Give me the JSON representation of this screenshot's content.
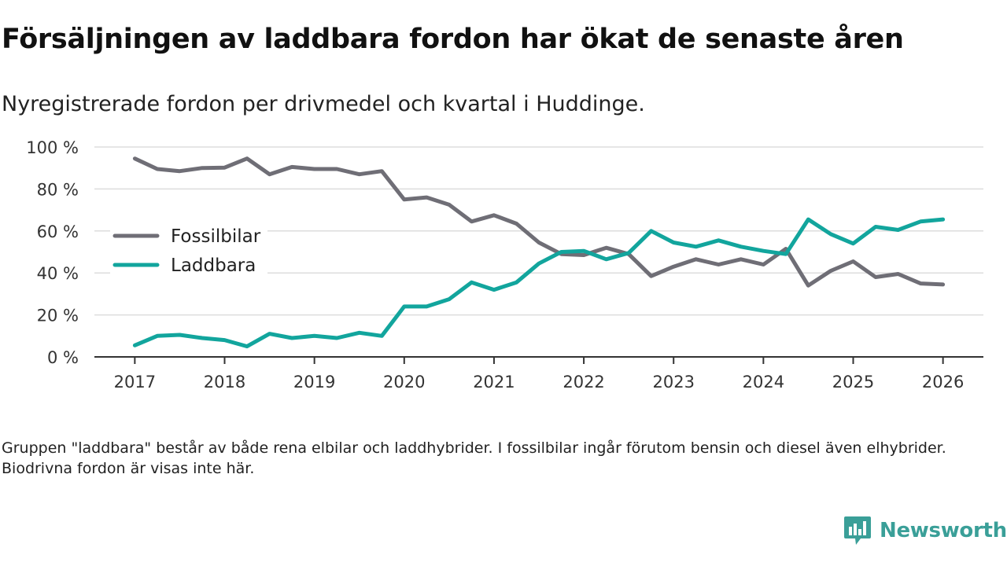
{
  "title": "Försäljningen av laddbara fordon har ökat de senaste åren",
  "subtitle": "Nyregistrerade fordon per drivmedel och kvartal i Huddinge.",
  "footnote": "Gruppen \"laddbara\" består av både rena elbilar och laddhybrider. I fossilbilar ingår förutom bensin och diesel även elhybrider. Biodrivna fordon är visas inte här.",
  "brand": {
    "name": "Newsworthy",
    "icon": "newsworthy-logo-icon",
    "color": "#3a9f98"
  },
  "chart_data": {
    "type": "line",
    "title": "Försäljningen av laddbara fordon har ökat de senaste åren",
    "subtitle": "Nyregistrerade fordon per drivmedel och kvartal i Huddinge.",
    "xlabel": "",
    "ylabel": "",
    "xlim": [
      2016.55,
      2026.45
    ],
    "ylim": [
      0,
      100
    ],
    "x_ticks": [
      2017,
      2018,
      2019,
      2020,
      2021,
      2022,
      2023,
      2024,
      2025,
      2026
    ],
    "y_ticks": [
      0,
      20,
      40,
      60,
      80,
      100
    ],
    "y_tick_suffix": " %",
    "grid": "horizontal",
    "legend_position": "left",
    "x": [
      2017,
      2017.25,
      2017.5,
      2017.75,
      2018,
      2018.25,
      2018.5,
      2018.75,
      2019,
      2019.25,
      2019.5,
      2019.75,
      2020,
      2020.25,
      2020.5,
      2020.75,
      2021,
      2021.25,
      2021.5,
      2021.75,
      2022,
      2022.25,
      2022.5,
      2022.75,
      2023,
      2023.25,
      2023.5,
      2023.75,
      2024,
      2024.25,
      2024.5,
      2024.75,
      2025,
      2025.25,
      2025.5,
      2025.75,
      2026
    ],
    "series": [
      {
        "name": "Fossilbilar",
        "color": "#6f6e76",
        "values": [
          94.5,
          89.5,
          88.5,
          90,
          90.2,
          94.5,
          87,
          90.5,
          89.5,
          89.5,
          87,
          88.5,
          75,
          76,
          72.5,
          64.5,
          67.5,
          63.5,
          54.5,
          49,
          48.5,
          52,
          49,
          38.5,
          43,
          46.5,
          44,
          46.5,
          44,
          51.5,
          34,
          41,
          45.5,
          38,
          39.5,
          35,
          34.5
        ]
      },
      {
        "name": "Laddbara",
        "color": "#12a59d",
        "values": [
          5.5,
          10,
          10.5,
          9,
          8,
          5,
          11,
          9,
          10,
          9,
          11.5,
          10,
          24,
          24,
          27.5,
          35.5,
          32,
          35.5,
          44.5,
          50,
          50.5,
          46.5,
          49.5,
          60,
          54.5,
          52.5,
          55.5,
          52.5,
          50.5,
          49,
          65.5,
          58.5,
          54,
          62,
          60.5,
          64.5,
          65.5
        ]
      }
    ]
  }
}
